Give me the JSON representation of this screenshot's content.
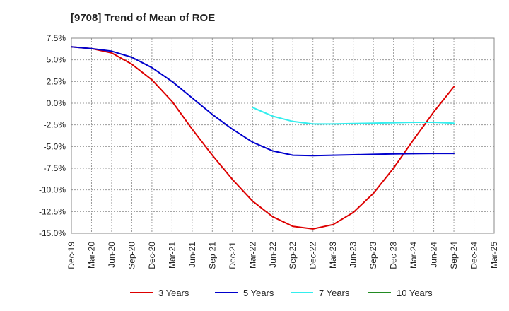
{
  "chart_data": {
    "type": "line",
    "title": "[9708]  Trend of Mean of ROE",
    "xlabel": "",
    "ylabel": "",
    "ylim": [
      -15.0,
      7.5
    ],
    "y_ticks": [
      "7.5%",
      "5.0%",
      "2.5%",
      "0.0%",
      "-2.5%",
      "-5.0%",
      "-7.5%",
      "-10.0%",
      "-12.5%",
      "-15.0%"
    ],
    "y_tick_values": [
      7.5,
      5.0,
      2.5,
      0.0,
      -2.5,
      -5.0,
      -7.5,
      -10.0,
      -12.5,
      -15.0
    ],
    "categories": [
      "Dec-19",
      "Mar-20",
      "Jun-20",
      "Sep-20",
      "Dec-20",
      "Mar-21",
      "Jun-21",
      "Sep-21",
      "Dec-21",
      "Mar-22",
      "Jun-22",
      "Sep-22",
      "Dec-22",
      "Mar-23",
      "Jun-23",
      "Sep-23",
      "Dec-23",
      "Mar-24",
      "Jun-24",
      "Sep-24",
      "Dec-24",
      "Mar-25"
    ],
    "grid": true,
    "legend_position": "bottom",
    "series": [
      {
        "name": "3 Years",
        "color": "#dd0000",
        "values": [
          6.5,
          6.3,
          5.8,
          4.5,
          2.7,
          0.2,
          -3.0,
          -6.0,
          -8.8,
          -11.3,
          -13.1,
          -14.2,
          -14.5,
          -14.0,
          -12.6,
          -10.4,
          -7.5,
          -4.2,
          -1.0,
          1.9,
          null,
          null
        ]
      },
      {
        "name": "5 Years",
        "color": "#0000cc",
        "values": [
          6.5,
          6.3,
          6.0,
          5.3,
          4.1,
          2.5,
          0.6,
          -1.3,
          -3.0,
          -4.5,
          -5.5,
          -6.0,
          -6.05,
          -6.0,
          -5.95,
          -5.9,
          -5.85,
          -5.82,
          -5.8,
          -5.8,
          null,
          null
        ]
      },
      {
        "name": "7 Years",
        "color": "#33eeee",
        "values": [
          null,
          null,
          null,
          null,
          null,
          null,
          null,
          null,
          null,
          -0.5,
          -1.5,
          -2.1,
          -2.4,
          -2.4,
          -2.35,
          -2.3,
          -2.25,
          -2.2,
          -2.2,
          -2.3,
          null,
          null
        ]
      },
      {
        "name": "10 Years",
        "color": "#228b22",
        "values": [
          null,
          null,
          null,
          null,
          null,
          null,
          null,
          null,
          null,
          null,
          null,
          null,
          null,
          null,
          null,
          null,
          null,
          null,
          null,
          null,
          null,
          null
        ]
      }
    ]
  }
}
